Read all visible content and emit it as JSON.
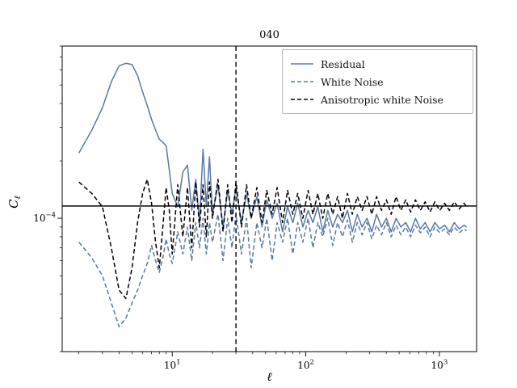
{
  "title": "040",
  "axes": {
    "xlabel": "ℓ",
    "ylabel_main": "C",
    "ylabel_sub": "ℓ"
  },
  "legend": {
    "items": [
      {
        "label": "Residual",
        "color": "#5878a8",
        "dash": "solid"
      },
      {
        "label": "White Noise",
        "color": "#5878a8",
        "dash": "dashed"
      },
      {
        "label": "Anisotropic white Noise",
        "color": "#000000",
        "dash": "dashed"
      }
    ]
  },
  "chart_data": {
    "type": "line",
    "xscale": "log",
    "yscale": "log",
    "xlim": [
      1.5,
      1900
    ],
    "ylim": [
      2e-05,
      0.0008
    ],
    "xticks": [
      {
        "value": 10,
        "base": "10",
        "exp": "1"
      },
      {
        "value": 100,
        "base": "10",
        "exp": "2"
      },
      {
        "value": 1000,
        "base": "10",
        "exp": "3"
      }
    ],
    "yticks": [
      {
        "value": 0.0001,
        "base": "10",
        "exp": "−4"
      }
    ],
    "reference_lines": {
      "horizontal_y": 0.000116,
      "vertical_x": 30
    },
    "y_unit": 0.0001,
    "x": [
      2,
      2.5,
      3,
      3.5,
      4,
      4.5,
      5,
      5.5,
      6,
      6.5,
      7,
      7.5,
      8,
      8.5,
      9,
      9.5,
      10,
      11,
      12,
      13,
      14,
      15,
      16,
      17,
      18,
      19,
      20,
      22,
      24,
      26,
      28,
      30,
      33,
      36,
      39,
      43,
      47,
      51,
      56,
      61,
      67,
      73,
      80,
      87,
      95,
      104,
      113,
      123,
      134,
      146,
      159,
      173,
      188,
      205,
      223,
      243,
      264,
      287,
      312,
      339,
      369,
      401,
      436,
      474,
      515,
      560,
      609,
      662,
      720,
      783,
      851,
      925,
      1006,
      1094,
      1189,
      1293,
      1406,
      1529,
      1600
    ],
    "series": [
      {
        "name": "Residual",
        "style": "solid",
        "color": "#5878a8",
        "values": [
          2.2,
          2.9,
          3.8,
          5.2,
          6.3,
          6.5,
          6.4,
          5.6,
          4.6,
          3.9,
          3.3,
          2.9,
          2.6,
          2.5,
          2.4,
          1.8,
          1.35,
          1.15,
          1.75,
          1.9,
          1.1,
          1.6,
          0.95,
          2.3,
          1.15,
          2.1,
          1.05,
          1.5,
          0.9,
          1.4,
          1.05,
          1.45,
          0.95,
          1.35,
          1.0,
          1.3,
          0.9,
          1.25,
          1.0,
          1.2,
          0.85,
          1.15,
          0.95,
          1.2,
          0.9,
          1.1,
          0.95,
          1.15,
          0.85,
          1.1,
          0.9,
          1.05,
          0.95,
          1.1,
          0.85,
          1.05,
          0.9,
          1.0,
          0.85,
          1.05,
          0.9,
          1.0,
          0.85,
          1.0,
          0.9,
          0.95,
          0.85,
          1.0,
          0.88,
          0.95,
          0.85,
          0.95,
          0.88,
          0.92,
          0.85,
          0.95,
          0.88,
          0.92,
          0.9
        ]
      },
      {
        "name": "White Noise",
        "style": "dashed",
        "color": "#5878a8",
        "values": [
          0.75,
          0.62,
          0.5,
          0.36,
          0.27,
          0.3,
          0.36,
          0.42,
          0.5,
          0.58,
          0.72,
          0.6,
          0.52,
          0.62,
          0.78,
          0.65,
          0.58,
          0.85,
          0.65,
          0.9,
          0.6,
          0.95,
          0.7,
          1.0,
          0.65,
          0.95,
          0.75,
          1.05,
          0.6,
          1.0,
          0.7,
          1.05,
          0.65,
          1.0,
          0.55,
          0.95,
          0.7,
          1.0,
          0.6,
          0.95,
          0.75,
          1.0,
          0.65,
          0.95,
          0.75,
          1.0,
          0.7,
          0.95,
          0.8,
          1.0,
          0.72,
          0.95,
          0.8,
          0.98,
          0.75,
          0.95,
          0.82,
          0.95,
          0.78,
          0.92,
          0.82,
          0.95,
          0.8,
          0.92,
          0.82,
          0.9,
          0.8,
          0.92,
          0.84,
          0.9,
          0.8,
          0.9,
          0.84,
          0.88,
          0.82,
          0.9,
          0.84,
          0.88,
          0.86
        ]
      },
      {
        "name": "Anisotropic white Noise",
        "style": "dashed",
        "color": "#000000",
        "values": [
          1.55,
          1.35,
          1.15,
          0.7,
          0.42,
          0.38,
          0.55,
          0.95,
          1.35,
          1.6,
          1.2,
          0.75,
          0.55,
          0.9,
          1.45,
          1.1,
          0.65,
          1.5,
          0.8,
          1.45,
          0.7,
          1.55,
          0.9,
          1.5,
          0.8,
          1.55,
          1.0,
          1.6,
          0.85,
          1.5,
          0.95,
          1.55,
          0.9,
          1.5,
          1.0,
          1.45,
          0.95,
          1.4,
          1.05,
          1.45,
          0.95,
          1.4,
          1.05,
          1.35,
          1.0,
          1.4,
          1.05,
          1.35,
          1.0,
          1.35,
          1.05,
          1.3,
          1.0,
          1.35,
          1.05,
          1.3,
          1.1,
          1.3,
          1.05,
          1.3,
          1.1,
          1.25,
          1.05,
          1.3,
          1.1,
          1.25,
          1.08,
          1.25,
          1.1,
          1.22,
          1.08,
          1.22,
          1.1,
          1.2,
          1.1,
          1.22,
          1.12,
          1.2,
          1.15
        ]
      }
    ]
  }
}
